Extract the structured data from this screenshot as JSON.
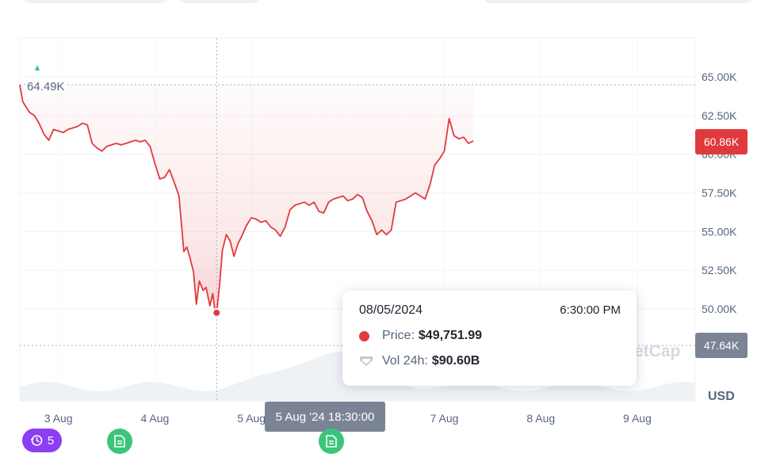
{
  "chart_data": {
    "type": "area",
    "title": "",
    "xlabel": "",
    "ylabel": "",
    "currency": "USD",
    "ylim": [
      46000,
      67000
    ],
    "y_ticks": [
      "65.00K",
      "62.50K",
      "60.00K",
      "57.50K",
      "55.00K",
      "52.50K",
      "50.00K"
    ],
    "y_tick_values": [
      65000,
      62500,
      60000,
      57500,
      55000,
      52500,
      50000
    ],
    "x_ticks": [
      "3 Aug",
      "4 Aug",
      "5 Aug",
      "7 Aug",
      "8 Aug",
      "9 Aug"
    ],
    "x_tick_days": [
      3,
      4,
      5,
      7,
      8,
      9
    ],
    "xlim_days": [
      2.6,
      9.6
    ],
    "grid": true,
    "series": [
      {
        "color": "#e03a3e",
        "points": [
          [
            2.6,
            64490
          ],
          [
            2.63,
            63400
          ],
          [
            2.66,
            63100
          ],
          [
            2.7,
            62700
          ],
          [
            2.75,
            62500
          ],
          [
            2.8,
            62000
          ],
          [
            2.85,
            61300
          ],
          [
            2.9,
            60900
          ],
          [
            2.95,
            61600
          ],
          [
            3.0,
            61500
          ],
          [
            3.05,
            61400
          ],
          [
            3.1,
            61600
          ],
          [
            3.15,
            61700
          ],
          [
            3.2,
            61800
          ],
          [
            3.25,
            62000
          ],
          [
            3.3,
            61900
          ],
          [
            3.35,
            60700
          ],
          [
            3.4,
            60400
          ],
          [
            3.45,
            60200
          ],
          [
            3.5,
            60500
          ],
          [
            3.55,
            60600
          ],
          [
            3.6,
            60700
          ],
          [
            3.65,
            60600
          ],
          [
            3.7,
            60700
          ],
          [
            3.75,
            60800
          ],
          [
            3.8,
            60900
          ],
          [
            3.85,
            60800
          ],
          [
            3.9,
            60900
          ],
          [
            3.95,
            60500
          ],
          [
            4.0,
            59400
          ],
          [
            4.05,
            58400
          ],
          [
            4.1,
            58500
          ],
          [
            4.15,
            59000
          ],
          [
            4.2,
            58200
          ],
          [
            4.25,
            57300
          ],
          [
            4.3,
            53700
          ],
          [
            4.33,
            54000
          ],
          [
            4.36,
            53400
          ],
          [
            4.4,
            52400
          ],
          [
            4.43,
            50300
          ],
          [
            4.46,
            51800
          ],
          [
            4.5,
            51200
          ],
          [
            4.53,
            51400
          ],
          [
            4.57,
            50200
          ],
          [
            4.6,
            51000
          ],
          [
            4.62,
            50000
          ],
          [
            4.64,
            49752
          ],
          [
            4.67,
            51500
          ],
          [
            4.7,
            53800
          ],
          [
            4.74,
            54800
          ],
          [
            4.78,
            54400
          ],
          [
            4.82,
            53400
          ],
          [
            4.86,
            54200
          ],
          [
            4.9,
            54700
          ],
          [
            4.95,
            55400
          ],
          [
            5.0,
            55900
          ],
          [
            5.05,
            55800
          ],
          [
            5.1,
            55600
          ],
          [
            5.15,
            55700
          ],
          [
            5.2,
            55300
          ],
          [
            5.25,
            55100
          ],
          [
            5.3,
            54700
          ],
          [
            5.35,
            55300
          ],
          [
            5.4,
            56400
          ],
          [
            5.45,
            56700
          ],
          [
            5.5,
            56800
          ],
          [
            5.55,
            56900
          ],
          [
            5.6,
            56700
          ],
          [
            5.65,
            56900
          ],
          [
            5.7,
            56300
          ],
          [
            5.75,
            56200
          ],
          [
            5.8,
            56900
          ],
          [
            5.85,
            57100
          ],
          [
            5.9,
            57200
          ],
          [
            5.95,
            57300
          ],
          [
            6.0,
            57000
          ],
          [
            6.05,
            57100
          ],
          [
            6.1,
            57400
          ],
          [
            6.15,
            57200
          ],
          [
            6.2,
            56300
          ],
          [
            6.25,
            55700
          ],
          [
            6.3,
            54800
          ],
          [
            6.35,
            55100
          ],
          [
            6.4,
            54800
          ],
          [
            6.45,
            55100
          ],
          [
            6.5,
            56900
          ],
          [
            6.55,
            57000
          ],
          [
            6.6,
            57100
          ],
          [
            6.65,
            57300
          ],
          [
            6.7,
            57500
          ],
          [
            6.75,
            57300
          ],
          [
            6.8,
            57100
          ],
          [
            6.85,
            58000
          ],
          [
            6.9,
            59300
          ],
          [
            6.95,
            59700
          ],
          [
            7.0,
            60200
          ],
          [
            7.05,
            62300
          ],
          [
            7.1,
            61200
          ],
          [
            7.15,
            61000
          ],
          [
            7.2,
            61100
          ],
          [
            7.25,
            60700
          ],
          [
            7.3,
            60860
          ]
        ]
      }
    ],
    "volume_band": true,
    "current_price_label": "60.86K",
    "current_price_value": 60860,
    "range_low_label": "64.49K",
    "range_low_value": 64490,
    "crosshair_price_label": "47.64K",
    "crosshair_price_value": 47640,
    "crosshair_day": 4.64,
    "crosshair_time_label": "5 Aug '24 18:30:00",
    "tooltip": {
      "date": "08/05/2024",
      "time": "6:30:00 PM",
      "price_label": "Price:",
      "price_value": "$49,751.99",
      "volume_label": "Vol 24h:",
      "volume_value": "$90.60B"
    }
  },
  "axis_currency_label": "USD",
  "watermark": "etCap",
  "history_badge": {
    "icon": "history-icon",
    "count": "5"
  },
  "news_pins": [
    "document-icon",
    "document-icon"
  ],
  "colors": {
    "price_line": "#e03a3e",
    "grid": "#eff2f5",
    "badge_gray": "#7b8495",
    "history": "#8b3ef2",
    "news": "#3bc57a"
  }
}
